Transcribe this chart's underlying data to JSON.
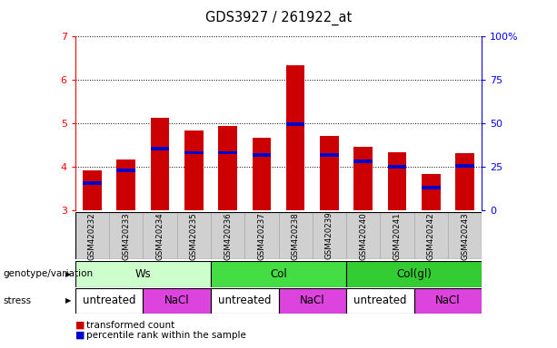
{
  "title": "GDS3927 / 261922_at",
  "samples": [
    "GSM420232",
    "GSM420233",
    "GSM420234",
    "GSM420235",
    "GSM420236",
    "GSM420237",
    "GSM420238",
    "GSM420239",
    "GSM420240",
    "GSM420241",
    "GSM420242",
    "GSM420243"
  ],
  "red_values": [
    3.93,
    4.17,
    5.13,
    4.83,
    4.95,
    4.68,
    6.35,
    4.72,
    4.47,
    4.35,
    3.83,
    4.32
  ],
  "blue_values": [
    3.63,
    3.93,
    4.43,
    4.33,
    4.33,
    4.28,
    4.98,
    4.28,
    4.13,
    4.0,
    3.53,
    4.03
  ],
  "bar_bottom": 3.0,
  "ylim": [
    3.0,
    7.0
  ],
  "yticks_left": [
    3,
    4,
    5,
    6,
    7
  ],
  "yticks_right": [
    0,
    25,
    50,
    75,
    100
  ],
  "bar_color_red": "#cc0000",
  "bar_color_blue": "#0000cc",
  "bar_width": 0.55,
  "blue_bar_height": 0.08,
  "genotype_groups": [
    {
      "label": "Ws",
      "start": 0,
      "end": 3,
      "color": "#ccffcc"
    },
    {
      "label": "Col",
      "start": 4,
      "end": 7,
      "color": "#44dd44"
    },
    {
      "label": "Col(gl)",
      "start": 8,
      "end": 11,
      "color": "#33cc33"
    }
  ],
  "stress_groups": [
    {
      "label": "untreated",
      "start": 0,
      "end": 1,
      "color": "#ffffff"
    },
    {
      "label": "NaCl",
      "start": 2,
      "end": 3,
      "color": "#dd44dd"
    },
    {
      "label": "untreated",
      "start": 4,
      "end": 5,
      "color": "#ffffff"
    },
    {
      "label": "NaCl",
      "start": 6,
      "end": 7,
      "color": "#dd44dd"
    },
    {
      "label": "untreated",
      "start": 8,
      "end": 9,
      "color": "#ffffff"
    },
    {
      "label": "NaCl",
      "start": 10,
      "end": 11,
      "color": "#dd44dd"
    }
  ],
  "legend_red_label": "transformed count",
  "legend_blue_label": "percentile rank within the sample",
  "genotype_label": "genotype/variation",
  "stress_label": "stress",
  "plot_bg": "#ffffff",
  "sample_label_bg": "#d0d0d0",
  "border_color": "#000000"
}
